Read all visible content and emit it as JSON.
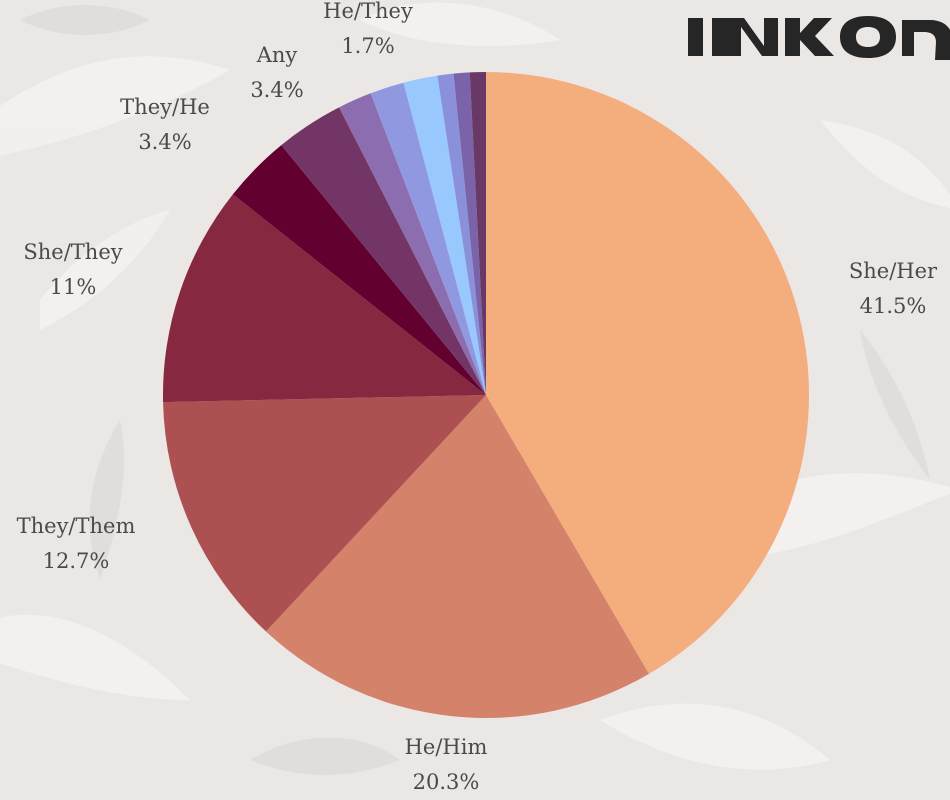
{
  "chart_data": {
    "type": "pie",
    "categories": [
      "She/Her",
      "He/Him",
      "They/Them",
      "She/They",
      "They/He",
      "Any",
      "He/They",
      "",
      "",
      "",
      "",
      ""
    ],
    "values": [
      41.5,
      20.3,
      12.7,
      11,
      3.4,
      3.4,
      1.7,
      1.7,
      1.7,
      0.8,
      0.8,
      0.8
    ],
    "value_labels": [
      "41.5%",
      "20.3%",
      "12.7%",
      "11%",
      "3.4%",
      "3.4%",
      "1.7%",
      "",
      "",
      "",
      "",
      ""
    ],
    "colors": [
      "#f4ad7c",
      "#d5826b",
      "#ad5052",
      "#86283f",
      "#620030",
      "#733565",
      "#8c6eb0",
      "#9099e0",
      "#99c8ff",
      "#8a90da",
      "#7a63a8",
      "#6a3866"
    ],
    "title": "",
    "legend": "none"
  },
  "logo": {
    "colors": {
      "fill": "#262626"
    }
  }
}
